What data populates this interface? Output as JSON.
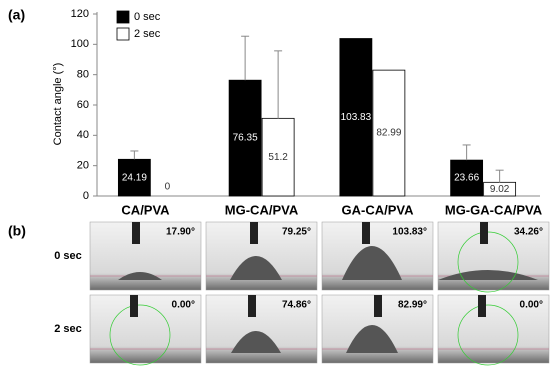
{
  "panel_labels": [
    "(a)",
    "(b)"
  ],
  "chart_data": {
    "type": "bar",
    "y_label": "Contact angle (°)",
    "categories": [
      "CA/PVA",
      "MG-CA/PVA",
      "GA-CA/PVA",
      "MG-GA-CA/PVA"
    ],
    "series": [
      {
        "name": "0 sec",
        "color": "#000000",
        "values": [
          24.19,
          76.35,
          103.83,
          23.66
        ],
        "errors": [
          5.5,
          29,
          null,
          10
        ]
      },
      {
        "name": "2 sec",
        "color": "#ffffff",
        "values": [
          0,
          51.2,
          82.99,
          9.02
        ],
        "errors": [
          null,
          44.5,
          null,
          8
        ]
      }
    ],
    "ylim": [
      0,
      120
    ],
    "yticks": [
      0,
      20,
      40,
      60,
      80,
      100,
      120
    ],
    "grid": false,
    "legend": "top-left"
  },
  "images": {
    "row_labels": [
      "0 sec",
      "2 sec"
    ],
    "angles": [
      [
        "17.90°",
        "79.25°",
        "103.83°",
        "34.26°"
      ],
      [
        "0.00°",
        "74.86°",
        "82.99°",
        "0.00°"
      ]
    ]
  }
}
